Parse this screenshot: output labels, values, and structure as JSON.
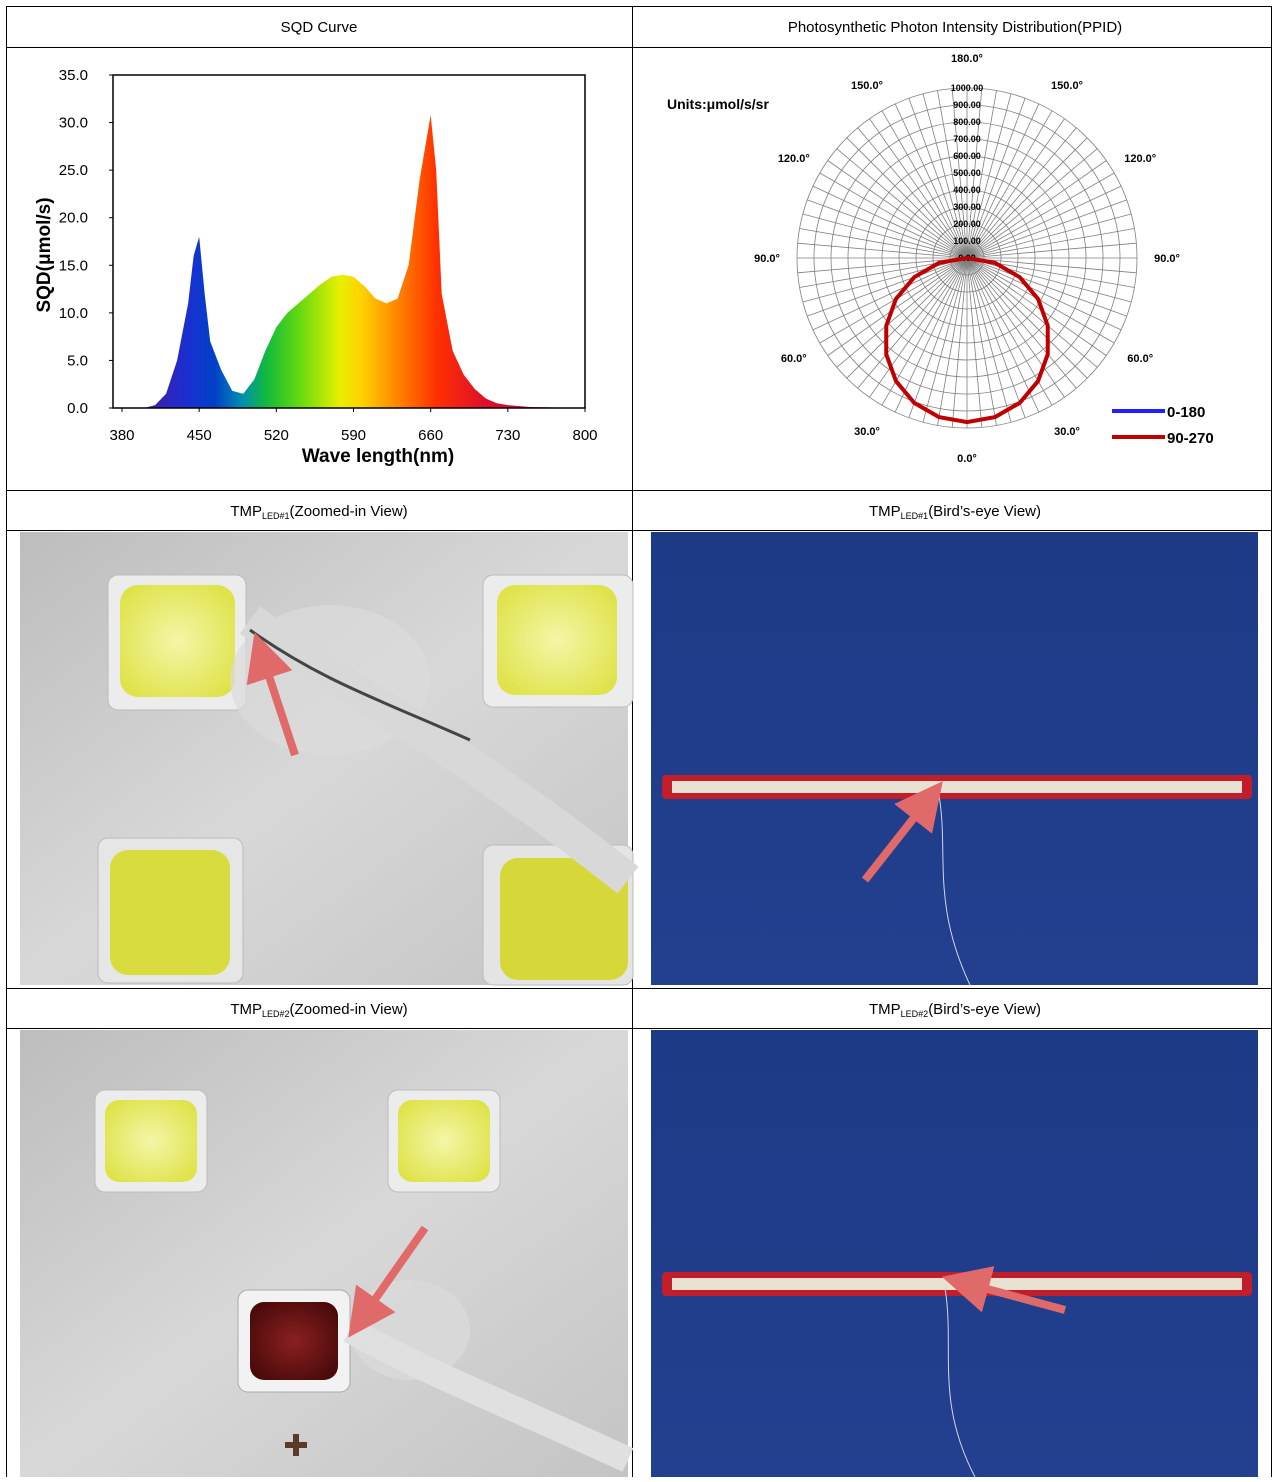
{
  "headers": [
    [
      "SQD Curve",
      "Photosynthetic Photon Intensity Distribution(PPID)"
    ],
    [
      {
        "main": "TMP",
        "sub": "LED#1",
        "rest": "(Zoomed-in View)"
      },
      {
        "main": "TMP",
        "sub": "LED#1",
        "rest": "(Bird’s-eye View)"
      }
    ],
    [
      {
        "main": "TMP",
        "sub": "LED#2",
        "rest": "(Zoomed-in View)"
      },
      {
        "main": "TMP",
        "sub": "LED#2",
        "rest": "(Bird’s-eye View)"
      }
    ]
  ],
  "sqd_chart": {
    "type": "area",
    "x_label": "Wave length(nm)",
    "y_label": "SQD(μmol/s)",
    "x": [
      380,
      400,
      410,
      420,
      430,
      440,
      445,
      450,
      455,
      460,
      470,
      480,
      490,
      500,
      510,
      520,
      530,
      540,
      550,
      560,
      570,
      580,
      590,
      600,
      610,
      620,
      630,
      640,
      650,
      660,
      665,
      670,
      680,
      690,
      700,
      710,
      720,
      730,
      750,
      800
    ],
    "values": [
      0,
      0,
      0.3,
      1.5,
      5,
      11,
      16,
      18,
      12,
      7,
      4,
      1.8,
      1.5,
      3,
      6,
      8.5,
      10,
      11,
      12,
      13,
      13.8,
      14,
      13.8,
      12.8,
      11.5,
      11,
      11.5,
      15,
      24,
      30.8,
      25,
      12,
      6,
      3.5,
      2,
      1,
      0.5,
      0.3,
      0.1,
      0
    ],
    "xlim": [
      380,
      800
    ],
    "xticks": [
      380,
      450,
      520,
      590,
      660,
      730,
      800
    ],
    "ylim": [
      0,
      35
    ],
    "yticks": [
      {
        "value": 0,
        "label": "0.0"
      },
      {
        "value": 5,
        "label": "5.0"
      },
      {
        "value": 10,
        "label": "10.0"
      },
      {
        "value": 15,
        "label": "15.0"
      },
      {
        "value": 20,
        "label": "20.0"
      },
      {
        "value": 25,
        "label": "25.0"
      },
      {
        "value": 30,
        "label": "30.0"
      },
      {
        "value": 35,
        "label": "35.0"
      }
    ]
  },
  "ppid_chart": {
    "type": "polar",
    "units": "Units:μmol/s/sr",
    "rlim": [
      0,
      1000
    ],
    "rticks": [
      {
        "value": 0,
        "label": "0.00"
      },
      {
        "value": 100,
        "label": "100.00"
      },
      {
        "value": 200,
        "label": "200.00"
      },
      {
        "value": 300,
        "label": "300.00"
      },
      {
        "value": 400,
        "label": "400.00"
      },
      {
        "value": 500,
        "label": "500.00"
      },
      {
        "value": 600,
        "label": "600.00"
      },
      {
        "value": 700,
        "label": "700.00"
      },
      {
        "value": 800,
        "label": "800.00"
      },
      {
        "value": 900,
        "label": "900.00"
      },
      {
        "value": 1000,
        "label": "1000.00"
      }
    ],
    "angle_labels": [
      {
        "value": 0,
        "label": "0.0°"
      },
      {
        "value": 30,
        "label": "30.0°"
      },
      {
        "value": 60,
        "label": "60.0°"
      },
      {
        "value": 90,
        "label": "90.0°"
      },
      {
        "value": 120,
        "label": "120.0°"
      },
      {
        "value": 150,
        "label": "150.0°"
      },
      {
        "value": 180,
        "label": "180.0°"
      }
    ],
    "angles": [
      -90,
      -80,
      -70,
      -60,
      -50,
      -40,
      -30,
      -20,
      -10,
      0,
      10,
      20,
      30,
      40,
      50,
      60,
      70,
      80,
      90
    ],
    "legend": "lower right",
    "series": [
      {
        "name": "0-180",
        "color": "#1f1fff",
        "values": [
          0,
          166,
          328,
          480,
          616,
          734,
          830,
          902,
          948,
          962,
          948,
          902,
          830,
          734,
          616,
          480,
          328,
          166,
          0
        ]
      },
      {
        "name": "90-270",
        "color": "#c00000",
        "values": [
          0,
          168,
          330,
          483,
          620,
          739,
          836,
          907,
          950,
          965,
          950,
          907,
          836,
          739,
          620,
          483,
          330,
          168,
          0
        ]
      }
    ]
  }
}
